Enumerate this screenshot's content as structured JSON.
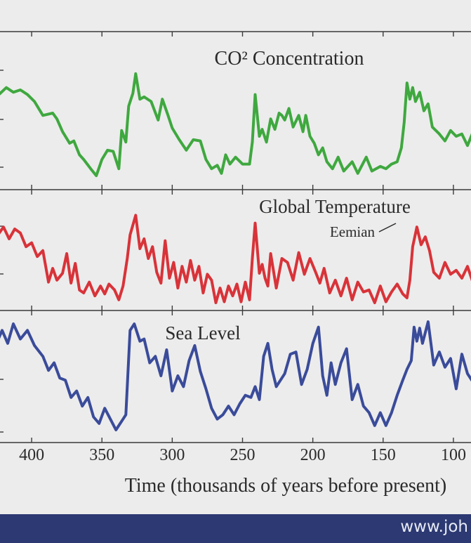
{
  "footer": {
    "text": "www.joh"
  },
  "chart_data": {
    "type": "line",
    "xlabel": "Time (thousands of years before present)",
    "x_ticks": [
      400,
      350,
      300,
      250,
      200,
      150,
      100
    ],
    "xlim": [
      425,
      80
    ],
    "x_reversed": true,
    "grid": false,
    "panels": [
      {
        "title": "CO² Concentration",
        "color": "#3fa83f",
        "series": [
          {
            "x": [
              425,
              418,
              413,
              408,
              403,
              398,
              392,
              385,
              382,
              378,
              373,
              370,
              366,
              363,
              358,
              354,
              350,
              346,
              342,
              338,
              336,
              333,
              331,
              328,
              326,
              323,
              320,
              315,
              310,
              307,
              303,
              300,
              295,
              290,
              285,
              280,
              276,
              272,
              268,
              265,
              262,
              259,
              255,
              250,
              245,
              243,
              241,
              238,
              236,
              233,
              230,
              227,
              224,
              222,
              220,
              217,
              214,
              210,
              207,
              205,
              202,
              199,
              196,
              193,
              190,
              186,
              182,
              178,
              172,
              168,
              162,
              158,
              152,
              148,
              144,
              140,
              137,
              135,
              133,
              131,
              129,
              127,
              124,
              121,
              118,
              115,
              110,
              106,
              102,
              98,
              94,
              90,
              86,
              82,
              80
            ],
            "y": [
              0.74,
              0.82,
              0.78,
              0.8,
              0.76,
              0.7,
              0.58,
              0.6,
              0.55,
              0.44,
              0.34,
              0.36,
              0.24,
              0.2,
              0.12,
              0.06,
              0.2,
              0.28,
              0.27,
              0.12,
              0.45,
              0.35,
              0.66,
              0.77,
              0.94,
              0.72,
              0.74,
              0.7,
              0.54,
              0.72,
              0.58,
              0.47,
              0.37,
              0.28,
              0.37,
              0.36,
              0.2,
              0.12,
              0.15,
              0.08,
              0.24,
              0.16,
              0.22,
              0.16,
              0.16,
              0.35,
              0.76,
              0.4,
              0.46,
              0.35,
              0.55,
              0.46,
              0.6,
              0.58,
              0.54,
              0.64,
              0.48,
              0.58,
              0.44,
              0.58,
              0.4,
              0.34,
              0.24,
              0.3,
              0.18,
              0.12,
              0.22,
              0.1,
              0.18,
              0.08,
              0.22,
              0.1,
              0.14,
              0.12,
              0.16,
              0.18,
              0.3,
              0.52,
              0.86,
              0.72,
              0.82,
              0.7,
              0.78,
              0.62,
              0.68,
              0.48,
              0.42,
              0.36,
              0.45,
              0.4,
              0.42,
              0.32,
              0.44,
              0.38,
              0.34
            ]
          }
        ]
      },
      {
        "title": "Global Temperature",
        "color": "#d83339",
        "annotation": "Eemian",
        "series": [
          {
            "x": [
              425,
              420,
              416,
              412,
              408,
              404,
              400,
              396,
              392,
              388,
              385,
              382,
              378,
              375,
              372,
              369,
              366,
              363,
              359,
              355,
              351,
              348,
              345,
              341,
              338,
              335,
              332,
              330,
              326,
              323,
              320,
              317,
              314,
              311,
              308,
              305,
              302,
              299,
              296,
              293,
              290,
              287,
              284,
              281,
              278,
              275,
              272,
              269,
              266,
              263,
              260,
              257,
              254,
              251,
              248,
              245,
              243,
              241,
              238,
              236,
              234,
              232,
              230,
              226,
              222,
              218,
              214,
              210,
              206,
              202,
              198,
              195,
              192,
              188,
              184,
              180,
              176,
              172,
              168,
              164,
              160,
              156,
              152,
              148,
              144,
              140,
              136,
              133,
              131,
              129,
              126,
              123,
              120,
              117,
              114,
              110,
              106,
              102,
              98,
              94,
              90,
              86,
              82,
              80
            ],
            "y": [
              0.72,
              0.82,
              0.7,
              0.8,
              0.76,
              0.62,
              0.66,
              0.52,
              0.58,
              0.26,
              0.4,
              0.28,
              0.35,
              0.55,
              0.25,
              0.45,
              0.18,
              0.15,
              0.26,
              0.12,
              0.22,
              0.14,
              0.24,
              0.18,
              0.08,
              0.22,
              0.5,
              0.74,
              0.94,
              0.6,
              0.7,
              0.5,
              0.62,
              0.36,
              0.25,
              0.68,
              0.3,
              0.46,
              0.2,
              0.42,
              0.26,
              0.48,
              0.28,
              0.42,
              0.15,
              0.34,
              0.28,
              0.05,
              0.2,
              0.06,
              0.22,
              0.12,
              0.24,
              0.06,
              0.26,
              0.08,
              0.5,
              0.86,
              0.35,
              0.44,
              0.3,
              0.22,
              0.55,
              0.2,
              0.5,
              0.46,
              0.28,
              0.56,
              0.34,
              0.5,
              0.36,
              0.25,
              0.4,
              0.15,
              0.28,
              0.12,
              0.3,
              0.08,
              0.26,
              0.16,
              0.18,
              0.05,
              0.22,
              0.06,
              0.16,
              0.24,
              0.14,
              0.1,
              0.28,
              0.62,
              0.82,
              0.64,
              0.72,
              0.58,
              0.36,
              0.3,
              0.46,
              0.34,
              0.38,
              0.3,
              0.42,
              0.25,
              0.36,
              0.34
            ]
          }
        ]
      },
      {
        "title": "Sea Level",
        "color": "#3a4b9a",
        "series": [
          {
            "x": [
              425,
              421,
              417,
              413,
              408,
              403,
              398,
              392,
              388,
              384,
              380,
              376,
              372,
              368,
              364,
              360,
              356,
              352,
              348,
              344,
              340,
              336,
              333,
              330,
              327,
              323,
              320,
              316,
              312,
              308,
              304,
              300,
              296,
              292,
              288,
              284,
              280,
              276,
              272,
              268,
              264,
              260,
              256,
              252,
              248,
              244,
              241,
              238,
              235,
              232,
              229,
              226,
              223,
              220,
              216,
              212,
              208,
              204,
              200,
              196,
              193,
              190,
              187,
              184,
              180,
              176,
              172,
              168,
              164,
              160,
              156,
              152,
              148,
              144,
              140,
              136,
              133,
              130,
              128,
              126,
              124,
              122,
              118,
              114,
              110,
              106,
              102,
              98,
              94,
              90,
              86,
              82,
              80
            ],
            "y": [
              0.8,
              0.92,
              0.8,
              0.98,
              0.84,
              0.92,
              0.78,
              0.68,
              0.55,
              0.62,
              0.48,
              0.46,
              0.3,
              0.36,
              0.22,
              0.3,
              0.12,
              0.06,
              0.2,
              0.1,
              0.0,
              0.08,
              0.14,
              0.92,
              0.98,
              0.82,
              0.84,
              0.62,
              0.68,
              0.5,
              0.74,
              0.36,
              0.5,
              0.4,
              0.64,
              0.78,
              0.54,
              0.38,
              0.2,
              0.1,
              0.14,
              0.22,
              0.14,
              0.24,
              0.32,
              0.3,
              0.4,
              0.28,
              0.68,
              0.8,
              0.56,
              0.4,
              0.46,
              0.52,
              0.7,
              0.72,
              0.42,
              0.56,
              0.8,
              0.95,
              0.5,
              0.32,
              0.62,
              0.42,
              0.62,
              0.75,
              0.28,
              0.42,
              0.22,
              0.16,
              0.04,
              0.16,
              0.04,
              0.16,
              0.32,
              0.46,
              0.56,
              0.64,
              0.95,
              0.82,
              0.94,
              0.8,
              1.0,
              0.6,
              0.72,
              0.58,
              0.66,
              0.38,
              0.7,
              0.52,
              0.44,
              0.62,
              0.55
            ]
          }
        ]
      }
    ]
  }
}
